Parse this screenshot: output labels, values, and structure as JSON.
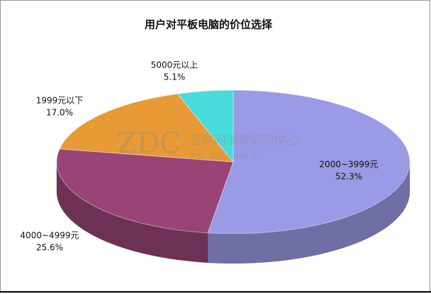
{
  "chart_data": {
    "type": "pie",
    "title": "用户对平板电脑的价位选择",
    "categories": [
      "2000~3999元",
      "4000~4999元",
      "1999元以下",
      "5000元以上"
    ],
    "values": [
      52.3,
      25.6,
      17.0,
      5.1
    ],
    "value_labels": [
      "52.3%",
      "25.6%",
      "17.0%",
      "5.1%"
    ],
    "colors": [
      "#9a9ae6",
      "#984476",
      "#e89a36",
      "#48dcdc"
    ],
    "watermark": [
      "ZDC",
      "互联网消费调研中心",
      "zdc.zol.com.cn"
    ]
  }
}
